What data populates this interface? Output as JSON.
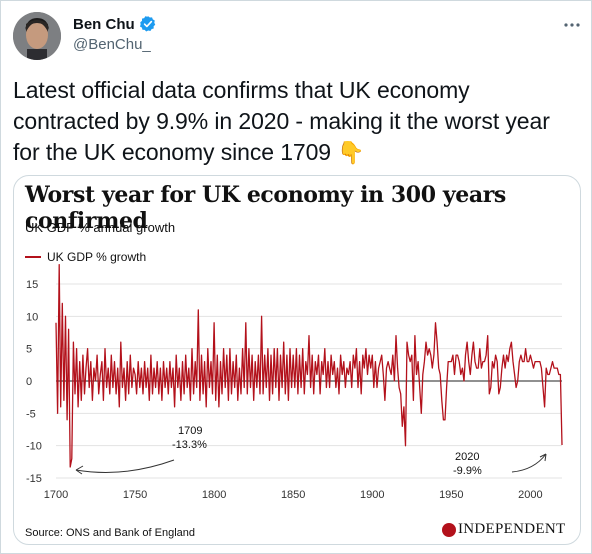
{
  "tweet": {
    "author_name": "Ben Chu",
    "handle": "@BenChu_",
    "text": "Latest official data confirms that UK economy contracted by 9.9% in 2020 - making it the worst year for the UK economy since 1709",
    "emoji": "👇"
  },
  "card": {
    "source": "Source: ONS and Bank of England",
    "logo_text": "INDEPENDENT"
  },
  "colors": {
    "series": "#b3111b",
    "verified": "#1d9bf0",
    "grid": "#e3e3e3"
  },
  "chart_data": {
    "type": "line",
    "title": "Worst year for UK economy in 300 years confirmed",
    "subtitle": "UK GDP % annual growth",
    "legend": "UK GDP % growth",
    "xlim": [
      1700,
      2020
    ],
    "ylim": [
      -15,
      15
    ],
    "x_ticks": [
      1700,
      1750,
      1800,
      1850,
      1900,
      1950,
      2000
    ],
    "y_ticks": [
      15,
      10,
      5,
      0,
      -5,
      -10,
      -15
    ],
    "series": [
      {
        "name": "UK GDP % growth",
        "points": [
          [
            1700,
            9
          ],
          [
            1701,
            -5
          ],
          [
            1702,
            18
          ],
          [
            1703,
            -4
          ],
          [
            1704,
            12
          ],
          [
            1705,
            -3
          ],
          [
            1706,
            10
          ],
          [
            1707,
            -6
          ],
          [
            1708,
            8
          ],
          [
            1709,
            -13.3
          ],
          [
            1710,
            -12
          ],
          [
            1711,
            6
          ],
          [
            1712,
            -2
          ],
          [
            1713,
            5
          ],
          [
            1714,
            -4
          ],
          [
            1715,
            3
          ],
          [
            1716,
            -3
          ],
          [
            1717,
            4
          ],
          [
            1718,
            -2
          ],
          [
            1719,
            2
          ],
          [
            1720,
            5
          ],
          [
            1721,
            -1
          ],
          [
            1722,
            3
          ],
          [
            1723,
            -3
          ],
          [
            1724,
            2
          ],
          [
            1725,
            0
          ],
          [
            1726,
            4
          ],
          [
            1727,
            -2
          ],
          [
            1728,
            1
          ],
          [
            1729,
            3
          ],
          [
            1730,
            -3
          ],
          [
            1731,
            5
          ],
          [
            1732,
            -1
          ],
          [
            1733,
            2
          ],
          [
            1734,
            -2
          ],
          [
            1735,
            4
          ],
          [
            1736,
            -1
          ],
          [
            1737,
            3
          ],
          [
            1738,
            -2
          ],
          [
            1739,
            2
          ],
          [
            1740,
            -4
          ],
          [
            1741,
            6
          ],
          [
            1742,
            -1
          ],
          [
            1743,
            2
          ],
          [
            1744,
            -3
          ],
          [
            1745,
            3
          ],
          [
            1746,
            -2
          ],
          [
            1747,
            4
          ],
          [
            1748,
            -1
          ],
          [
            1749,
            2
          ],
          [
            1750,
            1
          ],
          [
            1751,
            -2
          ],
          [
            1752,
            3
          ],
          [
            1753,
            -1
          ],
          [
            1754,
            2
          ],
          [
            1755,
            -2
          ],
          [
            1756,
            3
          ],
          [
            1757,
            -1
          ],
          [
            1758,
            2
          ],
          [
            1759,
            -3
          ],
          [
            1760,
            4
          ],
          [
            1761,
            -2
          ],
          [
            1762,
            2
          ],
          [
            1763,
            -1
          ],
          [
            1764,
            3
          ],
          [
            1765,
            -2
          ],
          [
            1766,
            2
          ],
          [
            1767,
            -3
          ],
          [
            1768,
            3
          ],
          [
            1769,
            -1
          ],
          [
            1770,
            2
          ],
          [
            1771,
            -2
          ],
          [
            1772,
            3
          ],
          [
            1773,
            -1
          ],
          [
            1774,
            2
          ],
          [
            1775,
            -4
          ],
          [
            1776,
            4
          ],
          [
            1777,
            -1
          ],
          [
            1778,
            2
          ],
          [
            1779,
            -3
          ],
          [
            1780,
            3
          ],
          [
            1781,
            -2
          ],
          [
            1782,
            4
          ],
          [
            1783,
            -1
          ],
          [
            1784,
            2
          ],
          [
            1785,
            -3
          ],
          [
            1786,
            5
          ],
          [
            1787,
            -2
          ],
          [
            1788,
            3
          ],
          [
            1789,
            -1
          ],
          [
            1790,
            11
          ],
          [
            1791,
            -3
          ],
          [
            1792,
            4
          ],
          [
            1793,
            -2
          ],
          [
            1794,
            3
          ],
          [
            1795,
            -4
          ],
          [
            1796,
            5
          ],
          [
            1797,
            -1
          ],
          [
            1798,
            3
          ],
          [
            1799,
            -2
          ],
          [
            1800,
            9
          ],
          [
            1801,
            -3
          ],
          [
            1802,
            4
          ],
          [
            1803,
            -4
          ],
          [
            1804,
            3
          ],
          [
            1805,
            -2
          ],
          [
            1806,
            5
          ],
          [
            1807,
            -1
          ],
          [
            1808,
            4
          ],
          [
            1809,
            -3
          ],
          [
            1810,
            5
          ],
          [
            1811,
            -2
          ],
          [
            1812,
            3
          ],
          [
            1813,
            -1
          ],
          [
            1814,
            4
          ],
          [
            1815,
            -3
          ],
          [
            1816,
            2
          ],
          [
            1817,
            -2
          ],
          [
            1818,
            5
          ],
          [
            1819,
            -1
          ],
          [
            1820,
            9
          ],
          [
            1821,
            -2
          ],
          [
            1822,
            5
          ],
          [
            1823,
            -1
          ],
          [
            1824,
            4
          ],
          [
            1825,
            -3
          ],
          [
            1826,
            3
          ],
          [
            1827,
            -1
          ],
          [
            1828,
            4
          ],
          [
            1829,
            -2
          ],
          [
            1830,
            10
          ],
          [
            1831,
            -2
          ],
          [
            1832,
            4
          ],
          [
            1833,
            -1
          ],
          [
            1834,
            5
          ],
          [
            1835,
            -3
          ],
          [
            1836,
            4
          ],
          [
            1837,
            -2
          ],
          [
            1838,
            5
          ],
          [
            1839,
            -1
          ],
          [
            1840,
            5
          ],
          [
            1841,
            -3
          ],
          [
            1842,
            4
          ],
          [
            1843,
            -1
          ],
          [
            1844,
            6
          ],
          [
            1845,
            -2
          ],
          [
            1846,
            4
          ],
          [
            1847,
            -3
          ],
          [
            1848,
            5
          ],
          [
            1849,
            -1
          ],
          [
            1850,
            4
          ],
          [
            1851,
            -1
          ],
          [
            1852,
            5
          ],
          [
            1853,
            -2
          ],
          [
            1854,
            4
          ],
          [
            1855,
            -1
          ],
          [
            1856,
            5
          ],
          [
            1857,
            -2
          ],
          [
            1858,
            3
          ],
          [
            1859,
            1
          ],
          [
            1860,
            7
          ],
          [
            1861,
            -1
          ],
          [
            1862,
            4
          ],
          [
            1863,
            -2
          ],
          [
            1864,
            3
          ],
          [
            1865,
            1
          ],
          [
            1866,
            4
          ],
          [
            1867,
            -2
          ],
          [
            1868,
            3
          ],
          [
            1869,
            1
          ],
          [
            1870,
            5
          ],
          [
            1871,
            -1
          ],
          [
            1872,
            3
          ],
          [
            1873,
            -1
          ],
          [
            1874,
            4
          ],
          [
            1875,
            1
          ],
          [
            1876,
            3
          ],
          [
            1877,
            -1
          ],
          [
            1878,
            2
          ],
          [
            1879,
            -2
          ],
          [
            1880,
            4
          ],
          [
            1881,
            1
          ],
          [
            1882,
            3
          ],
          [
            1883,
            -1
          ],
          [
            1884,
            2
          ],
          [
            1885,
            1
          ],
          [
            1886,
            3
          ],
          [
            1887,
            -1
          ],
          [
            1888,
            4
          ],
          [
            1889,
            2
          ],
          [
            1890,
            5
          ],
          [
            1891,
            -1
          ],
          [
            1892,
            3
          ],
          [
            1893,
            -2
          ],
          [
            1894,
            4
          ],
          [
            1895,
            2
          ],
          [
            1896,
            5
          ],
          [
            1897,
            1
          ],
          [
            1898,
            4
          ],
          [
            1899,
            2
          ],
          [
            1900,
            4
          ],
          [
            1901,
            -1
          ],
          [
            1902,
            3
          ],
          [
            1903,
            -1
          ],
          [
            1904,
            2
          ],
          [
            1905,
            3
          ],
          [
            1906,
            4
          ],
          [
            1907,
            1
          ],
          [
            1908,
            -3
          ],
          [
            1909,
            2
          ],
          [
            1910,
            3
          ],
          [
            1911,
            2
          ],
          [
            1912,
            1
          ],
          [
            1913,
            4
          ],
          [
            1914,
            0
          ],
          [
            1915,
            7
          ],
          [
            1916,
            2
          ],
          [
            1917,
            -1
          ],
          [
            1918,
            -2
          ],
          [
            1919,
            -7
          ],
          [
            1920,
            -4
          ],
          [
            1921,
            -10
          ],
          [
            1922,
            6
          ],
          [
            1923,
            4
          ],
          [
            1924,
            3
          ],
          [
            1925,
            4
          ],
          [
            1926,
            -3
          ],
          [
            1927,
            7
          ],
          [
            1928,
            1
          ],
          [
            1929,
            3
          ],
          [
            1930,
            -1
          ],
          [
            1931,
            -5
          ],
          [
            1932,
            1
          ],
          [
            1933,
            3
          ],
          [
            1934,
            6
          ],
          [
            1935,
            4
          ],
          [
            1936,
            5
          ],
          [
            1937,
            4
          ],
          [
            1938,
            2
          ],
          [
            1939,
            4
          ],
          [
            1940,
            9
          ],
          [
            1941,
            6
          ],
          [
            1942,
            2
          ],
          [
            1943,
            1
          ],
          [
            1944,
            -3
          ],
          [
            1945,
            -6
          ],
          [
            1946,
            -6
          ],
          [
            1947,
            -1
          ],
          [
            1948,
            3
          ],
          [
            1949,
            3
          ],
          [
            1950,
            3
          ],
          [
            1951,
            4
          ],
          [
            1952,
            1
          ],
          [
            1953,
            4
          ],
          [
            1954,
            4
          ],
          [
            1955,
            3
          ],
          [
            1956,
            1
          ],
          [
            1957,
            2
          ],
          [
            1958,
            0
          ],
          [
            1959,
            4
          ],
          [
            1960,
            6
          ],
          [
            1961,
            3
          ],
          [
            1962,
            1
          ],
          [
            1963,
            4
          ],
          [
            1964,
            6
          ],
          [
            1965,
            3
          ],
          [
            1966,
            2
          ],
          [
            1967,
            2
          ],
          [
            1968,
            5
          ],
          [
            1969,
            2
          ],
          [
            1970,
            3
          ],
          [
            1971,
            3
          ],
          [
            1972,
            4
          ],
          [
            1973,
            7
          ],
          [
            1974,
            -2
          ],
          [
            1975,
            -1
          ],
          [
            1976,
            3
          ],
          [
            1977,
            2
          ],
          [
            1978,
            4
          ],
          [
            1979,
            3
          ],
          [
            1980,
            -2
          ],
          [
            1981,
            -1
          ],
          [
            1982,
            2
          ],
          [
            1983,
            4
          ],
          [
            1984,
            2
          ],
          [
            1985,
            4
          ],
          [
            1986,
            3
          ],
          [
            1987,
            5
          ],
          [
            1988,
            6
          ],
          [
            1989,
            3
          ],
          [
            1990,
            1
          ],
          [
            1991,
            -1
          ],
          [
            1992,
            0
          ],
          [
            1993,
            3
          ],
          [
            1994,
            4
          ],
          [
            1995,
            3
          ],
          [
            1996,
            3
          ],
          [
            1997,
            5
          ],
          [
            1998,
            3
          ],
          [
            1999,
            3
          ],
          [
            2000,
            4
          ],
          [
            2001,
            3
          ],
          [
            2002,
            2
          ],
          [
            2003,
            3
          ],
          [
            2004,
            3
          ],
          [
            2005,
            3
          ],
          [
            2006,
            3
          ],
          [
            2007,
            2
          ],
          [
            2008,
            -1
          ],
          [
            2009,
            -4
          ],
          [
            2010,
            2
          ],
          [
            2011,
            1
          ],
          [
            2012,
            1
          ],
          [
            2013,
            2
          ],
          [
            2014,
            3
          ],
          [
            2015,
            2
          ],
          [
            2016,
            2
          ],
          [
            2017,
            2
          ],
          [
            2018,
            1
          ],
          [
            2019,
            1
          ],
          [
            2020,
            -9.9
          ]
        ]
      }
    ],
    "annotations": [
      {
        "year_label": "1709",
        "value_label": "-13.3%",
        "x": 1709,
        "y": -13.3
      },
      {
        "year_label": "2020",
        "value_label": "-9.9%",
        "x": 2020,
        "y": -9.9
      }
    ]
  }
}
